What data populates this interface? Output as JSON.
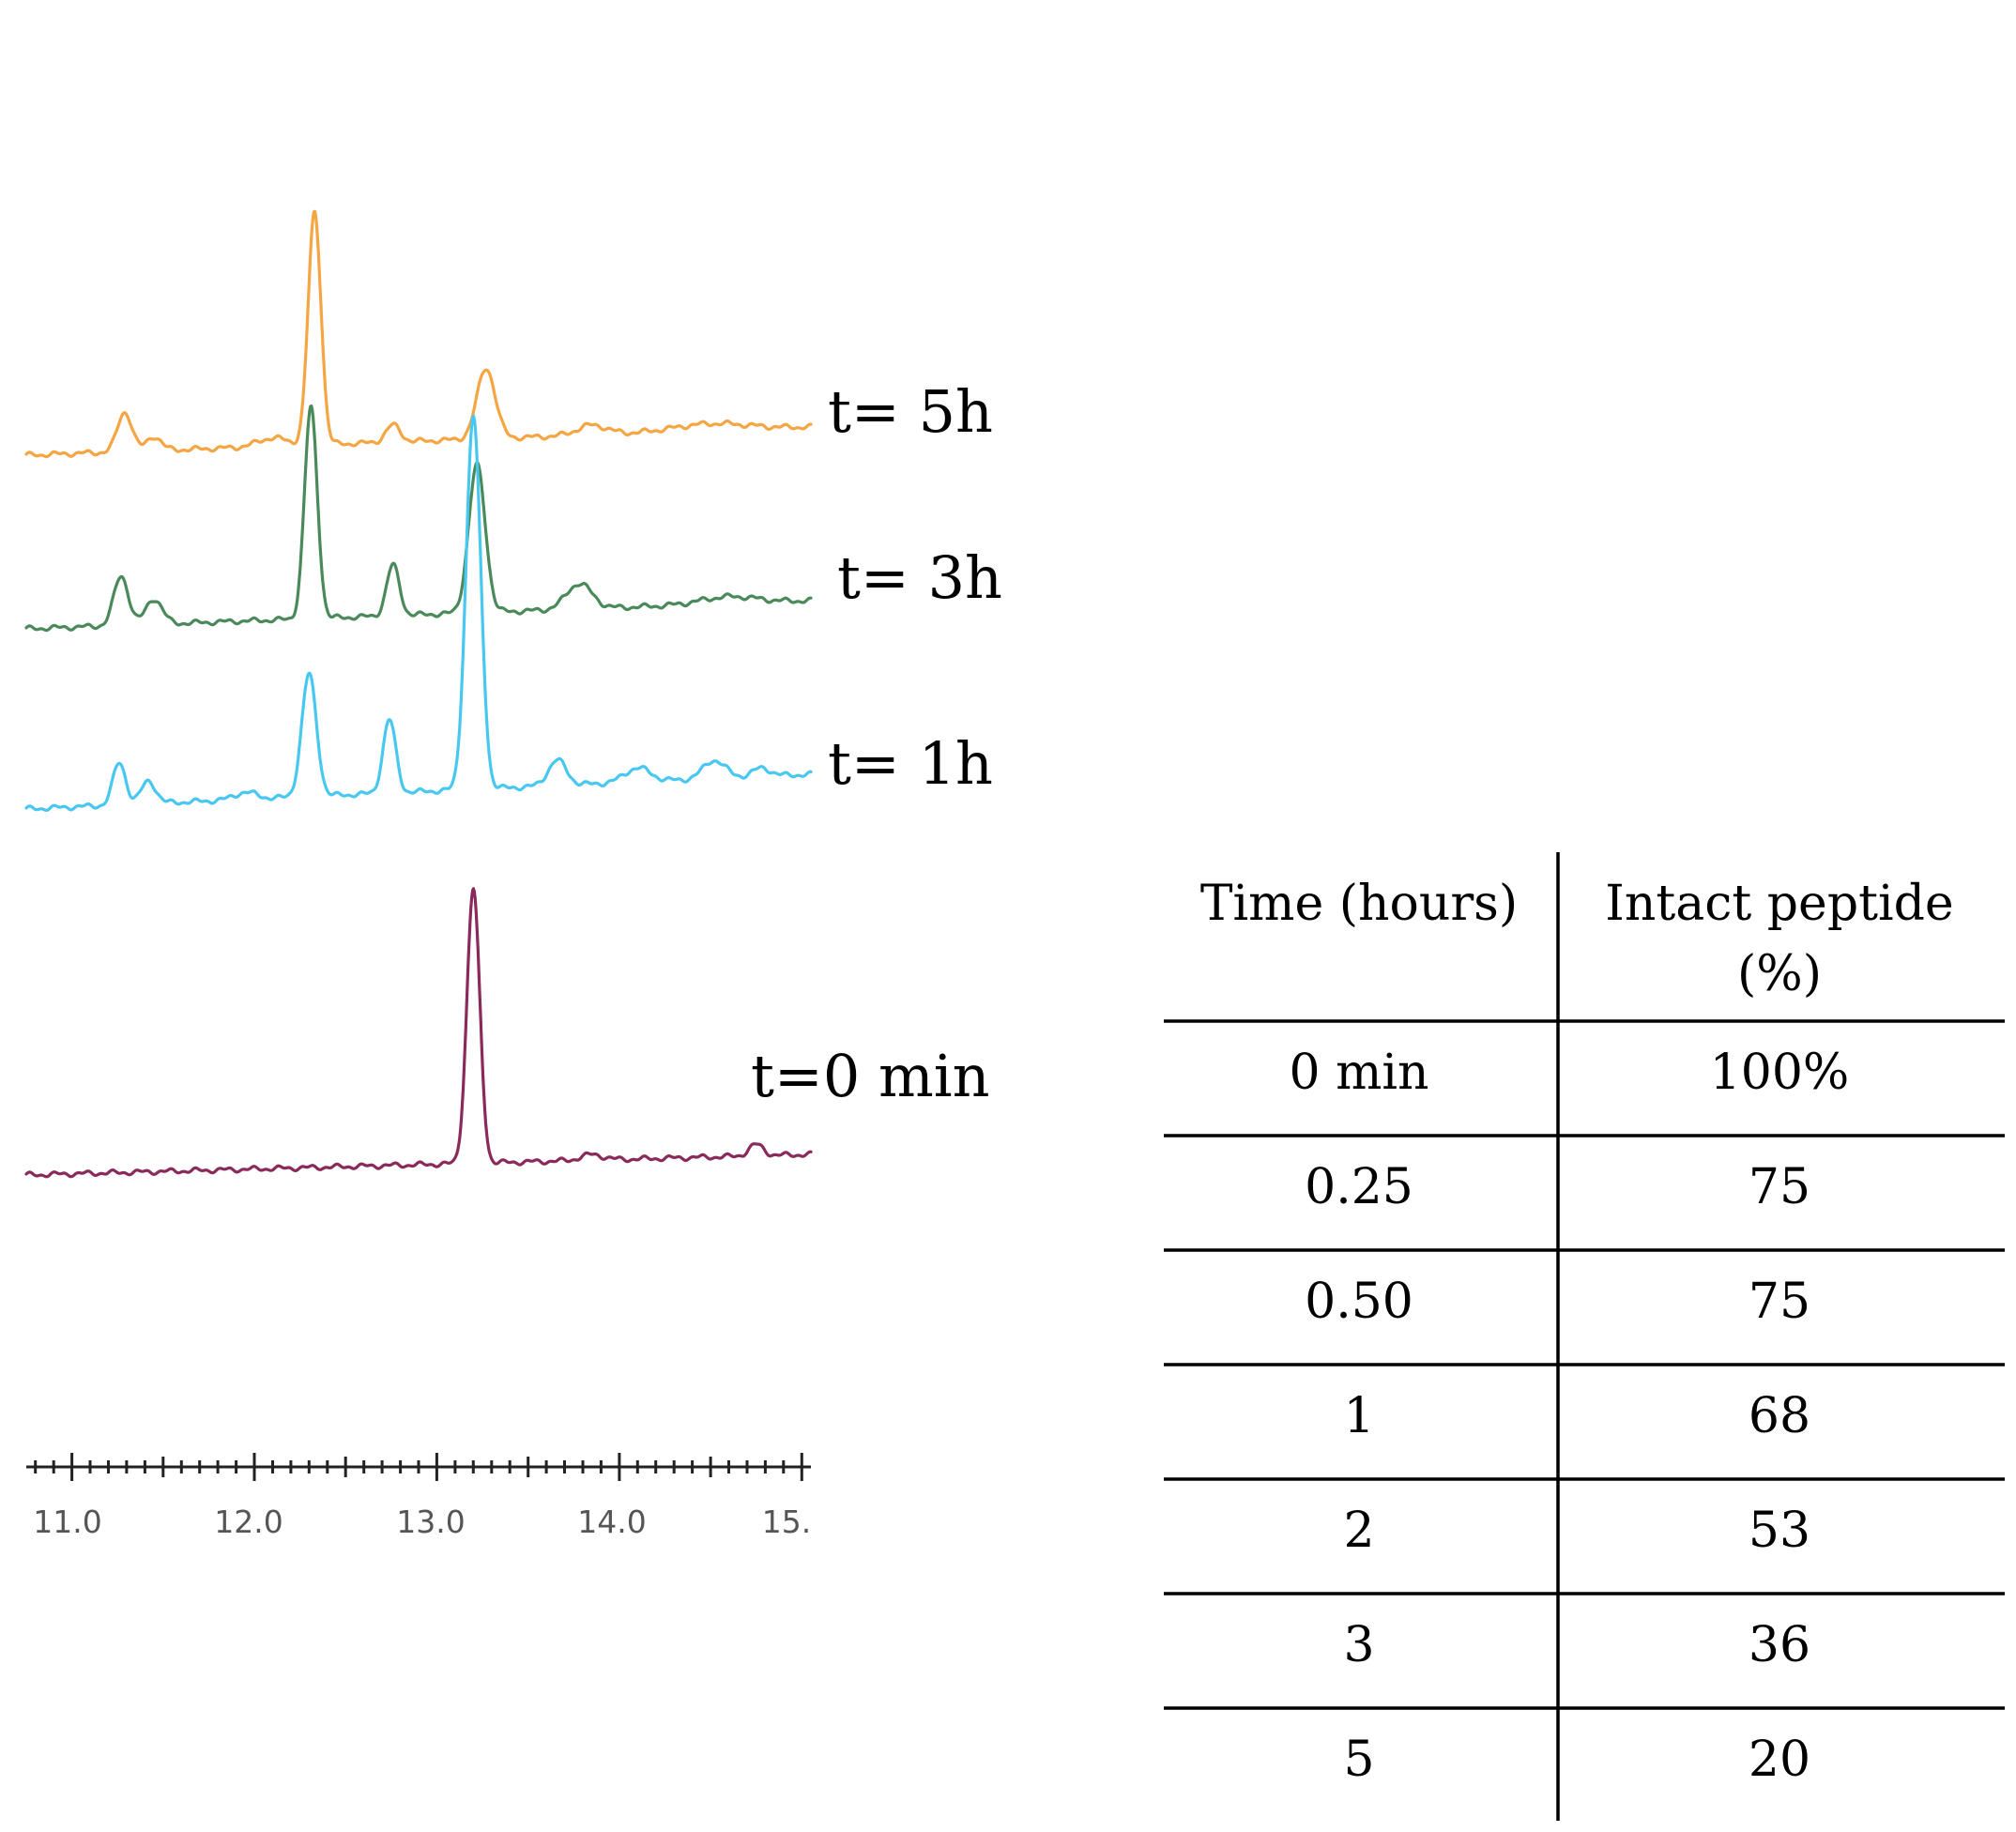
{
  "chart_data": [
    {
      "type": "line",
      "title": "",
      "xlabel": "",
      "ylabel": "",
      "xlim": [
        10.75,
        15.05
      ],
      "x_ticks": [
        "11.0",
        "12.0",
        "13.0",
        "14.0",
        "15."
      ],
      "x_tick_values": [
        11.0,
        12.0,
        13.0,
        14.0,
        15.0
      ],
      "series": [
        {
          "name": "t= 5h",
          "color": "#f5a542",
          "baseline": 0.0,
          "peaks": [
            [
              11.29,
              0.28,
              0.04
            ],
            [
              11.45,
              0.1,
              0.04
            ],
            [
              12.1,
              0.06,
              0.08
            ],
            [
              12.33,
              1.65,
              0.035
            ],
            [
              12.76,
              0.12,
              0.04
            ],
            [
              13.27,
              0.5,
              0.05
            ],
            [
              13.85,
              0.07,
              0.08
            ],
            [
              14.5,
              0.05,
              0.2
            ]
          ]
        },
        {
          "name": "t= 3h",
          "color": "#4a8a5a",
          "baseline": 0.0,
          "peaks": [
            [
              11.27,
              0.35,
              0.04
            ],
            [
              11.45,
              0.18,
              0.045
            ],
            [
              12.31,
              1.5,
              0.035
            ],
            [
              12.76,
              0.36,
              0.035
            ],
            [
              13.22,
              1.05,
              0.045
            ],
            [
              13.78,
              0.18,
              0.07
            ],
            [
              14.6,
              0.05,
              0.15
            ]
          ]
        },
        {
          "name": "t= 1h",
          "color": "#48c8f0",
          "baseline": 0.0,
          "peaks": [
            [
              11.26,
              0.3,
              0.035
            ],
            [
              11.42,
              0.16,
              0.04
            ],
            [
              11.95,
              0.05,
              0.06
            ],
            [
              12.3,
              0.87,
              0.04
            ],
            [
              12.74,
              0.52,
              0.035
            ],
            [
              13.2,
              2.65,
              0.04
            ],
            [
              13.66,
              0.18,
              0.05
            ],
            [
              14.1,
              0.1,
              0.07
            ],
            [
              14.52,
              0.13,
              0.06
            ],
            [
              14.78,
              0.06,
              0.05
            ]
          ]
        },
        {
          "name": "t=0 min",
          "color": "#8a2a5a",
          "baseline": 0.0,
          "peaks": [
            [
              13.2,
              1.95,
              0.035
            ],
            [
              13.85,
              0.04,
              0.06
            ],
            [
              14.75,
              0.08,
              0.04
            ]
          ]
        }
      ]
    },
    {
      "type": "table",
      "columns": [
        "Time (hours)",
        "Intact peptide (%)"
      ],
      "rows": [
        [
          "0 min",
          "100%"
        ],
        [
          "0.25",
          "75"
        ],
        [
          "0.50",
          "75"
        ],
        [
          "1",
          "68"
        ],
        [
          "2",
          "53"
        ],
        [
          "3",
          "36"
        ],
        [
          "5",
          "20"
        ]
      ]
    }
  ],
  "table": {
    "header_time": "Time (hours)",
    "header_intact_line1": "Intact peptide",
    "header_intact_line2": "(%)",
    "rows": [
      {
        "time": "0 min",
        "intact": "100%"
      },
      {
        "time": "0.25",
        "intact": "75"
      },
      {
        "time": "0.50",
        "intact": "75"
      },
      {
        "time": "1",
        "intact": "68"
      },
      {
        "time": "2",
        "intact": "53"
      },
      {
        "time": "3",
        "intact": "36"
      },
      {
        "time": "5",
        "intact": "20"
      }
    ]
  }
}
